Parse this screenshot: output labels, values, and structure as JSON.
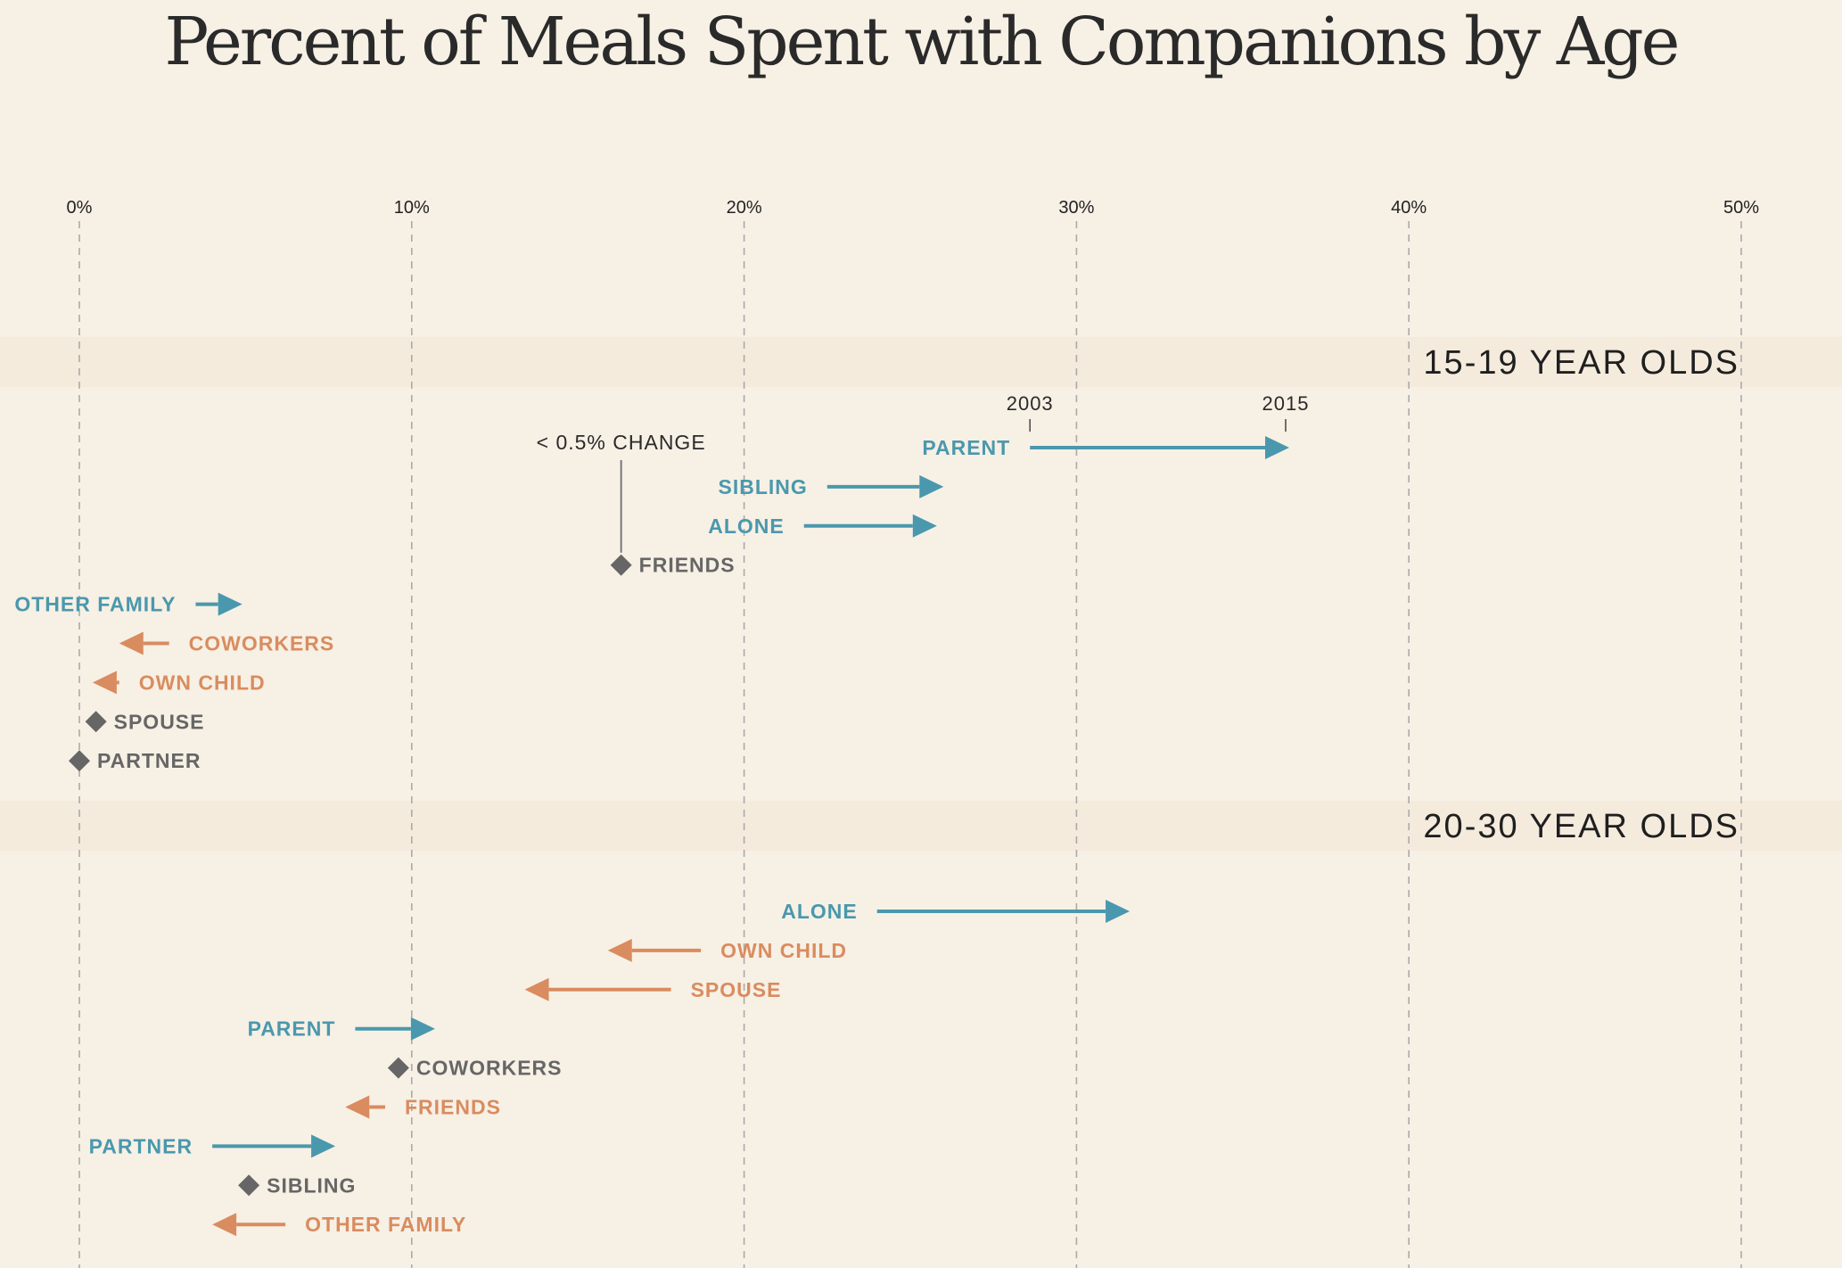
{
  "title": "Percent of Meals Spent with Companions by Age",
  "colors": {
    "background": "#f7f0e5",
    "band": "#f4ebdd",
    "increase": "#4a98ad",
    "decrease": "#d98c5f",
    "no_change": "#666666",
    "grid": "#aaaaaa"
  },
  "chart_data": {
    "type": "arrow-range",
    "xaxis": {
      "ticks": [
        0,
        10,
        20,
        30,
        40,
        50
      ],
      "tick_labels": [
        "0%",
        "10%",
        "20%",
        "30%",
        "40%",
        "50%"
      ],
      "range": [
        0,
        50
      ],
      "grid": true
    },
    "start_label": "2003",
    "end_label": "2015",
    "no_change_note": "< 0.5% CHANGE",
    "groups": [
      {
        "label": "15-19 YEAR OLDS",
        "rows": [
          {
            "label": "PARENT",
            "start": 28.6,
            "end": 36.4
          },
          {
            "label": "SIBLING",
            "start": 22.5,
            "end": 26.0
          },
          {
            "label": "ALONE",
            "start": 21.8,
            "end": 25.8
          },
          {
            "label": "FRIENDS",
            "start": 16.3,
            "end": 16.3
          },
          {
            "label": "OTHER FAMILY",
            "start": 3.5,
            "end": 4.9
          },
          {
            "label": "COWORKERS",
            "start": 2.7,
            "end": 1.2
          },
          {
            "label": "OWN CHILD",
            "start": 1.2,
            "end": 0.4
          },
          {
            "label": "SPOUSE",
            "start": 0.5,
            "end": 0.5
          },
          {
            "label": "PARTNER",
            "start": 0.0,
            "end": 0.0
          }
        ]
      },
      {
        "label": "20-30 YEAR OLDS",
        "rows": [
          {
            "label": "ALONE",
            "start": 24.0,
            "end": 31.6
          },
          {
            "label": "OWN CHILD",
            "start": 18.7,
            "end": 15.9
          },
          {
            "label": "SPOUSE",
            "start": 17.8,
            "end": 13.4
          },
          {
            "label": "PARENT",
            "start": 8.3,
            "end": 10.7
          },
          {
            "label": "COWORKERS",
            "start": 9.6,
            "end": 9.6
          },
          {
            "label": "FRIENDS",
            "start": 9.2,
            "end": 8.0
          },
          {
            "label": "PARTNER",
            "start": 4.0,
            "end": 7.7
          },
          {
            "label": "SIBLING",
            "start": 5.1,
            "end": 5.1
          },
          {
            "label": "OTHER FAMILY",
            "start": 6.2,
            "end": 4.0
          }
        ]
      }
    ]
  }
}
